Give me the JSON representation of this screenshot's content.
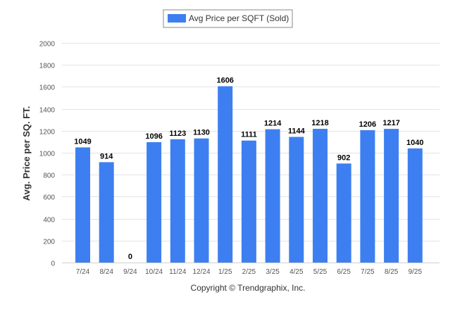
{
  "chart_data": {
    "type": "bar",
    "categories": [
      "7/24",
      "8/24",
      "9/24",
      "10/24",
      "11/24",
      "12/24",
      "1/25",
      "2/25",
      "3/25",
      "4/25",
      "5/25",
      "6/25",
      "7/25",
      "8/25",
      "9/25"
    ],
    "series": [
      {
        "name": "Avg Price per SQFT (Sold)",
        "values": [
          1049,
          914,
          0,
          1096,
          1123,
          1130,
          1606,
          1111,
          1214,
          1144,
          1218,
          902,
          1206,
          1217,
          1040
        ]
      }
    ],
    "title": "",
    "xlabel": "",
    "ylabel": "Avg. Price per SQ. FT.",
    "ylim": [
      0,
      2000
    ],
    "yticks": [
      0,
      200,
      400,
      600,
      800,
      1000,
      1200,
      1400,
      1600,
      1800,
      2000
    ],
    "grid": true,
    "legend_position": "top-center",
    "data_labels": true,
    "copyright": "Copyright © Trendgraphix, Inc."
  },
  "colors": {
    "bar": "#3d7ff0",
    "grid": "#e3e3e3",
    "axis_text": "#555555",
    "label_text": "#000000",
    "ylabel_text": "#333333"
  }
}
